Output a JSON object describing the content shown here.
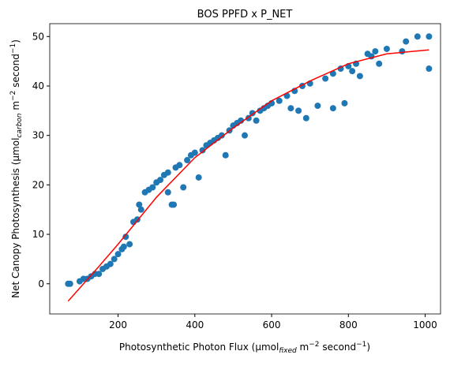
{
  "chart_data": {
    "type": "scatter",
    "title": "BOS PPFD x P_NET",
    "x_label": [
      "Photosynthetic Photon Flux (µmol",
      "fixed",
      " m",
      "−2",
      " second",
      "−1",
      ")"
    ],
    "y_label": [
      "Net Canopy Photosynthesis (µmol",
      "carbon",
      " m",
      "−2",
      " second",
      "−1",
      ")"
    ],
    "xlim": [
      22,
      1040
    ],
    "ylim": [
      -6.1,
      52.6
    ],
    "xticks": [
      200,
      400,
      600,
      800,
      1000
    ],
    "yticks": [
      0,
      10,
      20,
      30,
      40,
      50
    ],
    "series": [
      {
        "type": "scatter",
        "color": "#1f77b4",
        "x": [
          70,
          75,
          100,
          110,
          120,
          130,
          140,
          150,
          160,
          170,
          180,
          190,
          200,
          210,
          215,
          220,
          230,
          240,
          250,
          255,
          260,
          270,
          280,
          290,
          300,
          310,
          320,
          330,
          340,
          350,
          360,
          370,
          380,
          390,
          400,
          410,
          420,
          430,
          440,
          450,
          460,
          470,
          480,
          490,
          500,
          510,
          520,
          530,
          540,
          550,
          560,
          570,
          580,
          600,
          620,
          640,
          650,
          660,
          680,
          700,
          720,
          740,
          760,
          780,
          800,
          790,
          810,
          830,
          850,
          870,
          880,
          900,
          940,
          950,
          980,
          1010,
          1010,
          860,
          820,
          760,
          690,
          670,
          590,
          330,
          345
        ],
        "y": [
          0,
          0,
          0.5,
          1,
          1,
          1.5,
          2,
          2,
          3,
          3.5,
          4,
          5,
          6,
          7,
          7.5,
          9.5,
          8,
          12.5,
          13,
          16,
          15,
          18.5,
          19,
          19.5,
          20.5,
          21,
          22,
          22.5,
          16,
          23.5,
          24,
          19.5,
          25,
          26,
          26.5,
          21.5,
          27,
          28,
          28.5,
          29,
          29.5,
          30,
          26,
          31,
          32,
          32.5,
          33,
          30,
          33.5,
          34.5,
          33,
          35,
          35.5,
          36.5,
          37,
          38,
          35.5,
          39,
          40,
          40.5,
          36,
          41.5,
          42.5,
          43.5,
          44,
          36.5,
          43,
          42,
          46.5,
          47,
          44.5,
          47.5,
          47,
          49,
          50,
          50,
          43.5,
          46,
          44.5,
          35.5,
          33.5,
          35,
          36,
          18.5,
          16
        ]
      },
      {
        "type": "line",
        "color": "#ff0000",
        "x": [
          70,
          150,
          200,
          300,
          400,
          500,
          600,
          700,
          800,
          900,
          1010
        ],
        "y": [
          -3.5,
          3.5,
          8,
          17.5,
          25.5,
          31.5,
          37,
          41,
          44.5,
          46.5,
          47.3
        ]
      }
    ]
  }
}
